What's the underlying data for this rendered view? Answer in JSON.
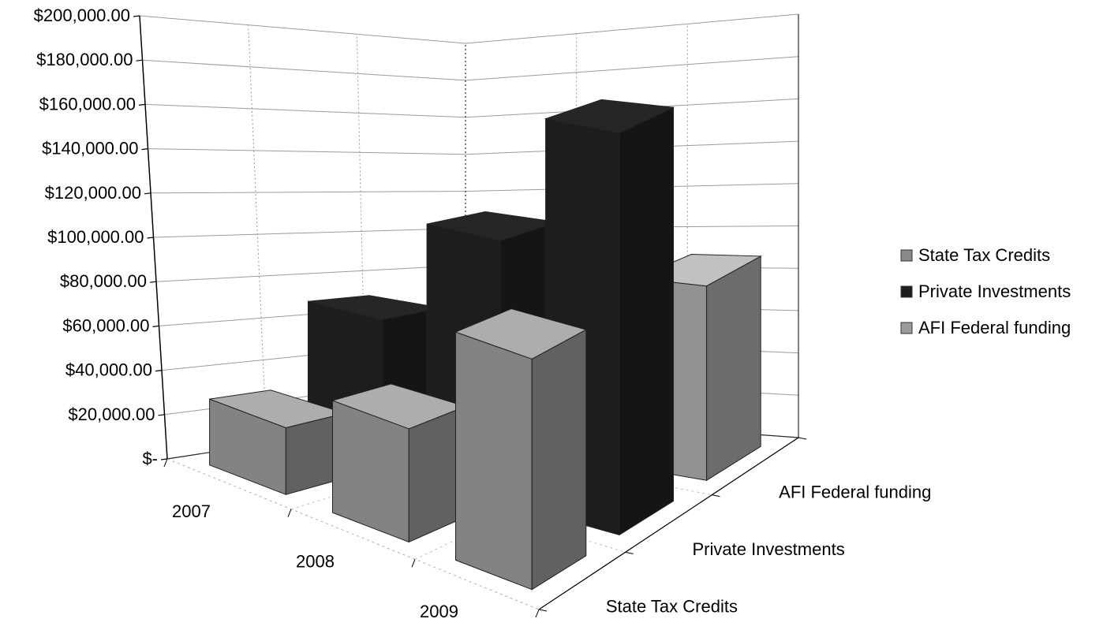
{
  "chart_data": {
    "type": "bar",
    "subtype": "3d-column",
    "title": "",
    "xlabel": "",
    "ylabel": "",
    "ylim": [
      0,
      200000
    ],
    "y_ticks": [
      0,
      20000,
      40000,
      60000,
      80000,
      100000,
      120000,
      140000,
      160000,
      180000,
      200000
    ],
    "y_tick_labels": [
      "$-",
      "$20,000.00",
      "$40,000.00",
      "$60,000.00",
      "$80,000.00",
      "$100,000.00",
      "$120,000.00",
      "$140,000.00",
      "$160,000.00",
      "$180,000.00",
      "$200,000.00"
    ],
    "categories": [
      "2007",
      "2008",
      "2009"
    ],
    "series": [
      {
        "name": "State Tax Credits",
        "values": [
          30000,
          50000,
          100000
        ],
        "color": "#8a8a8a"
      },
      {
        "name": "Private Investments",
        "values": [
          70000,
          120000,
          180000
        ],
        "color": "#1e1e1e"
      },
      {
        "name": "AFI Federal funding",
        "values": [
          0,
          0,
          90000
        ],
        "color": "#9a9a9a"
      }
    ],
    "depth_labels": [
      "State Tax Credits",
      "Private Investments",
      "AFI Federal funding"
    ],
    "legend": {
      "position": "right",
      "entries": [
        "State Tax Credits",
        "Private Investments",
        "AFI Federal funding"
      ]
    },
    "grid": true
  }
}
